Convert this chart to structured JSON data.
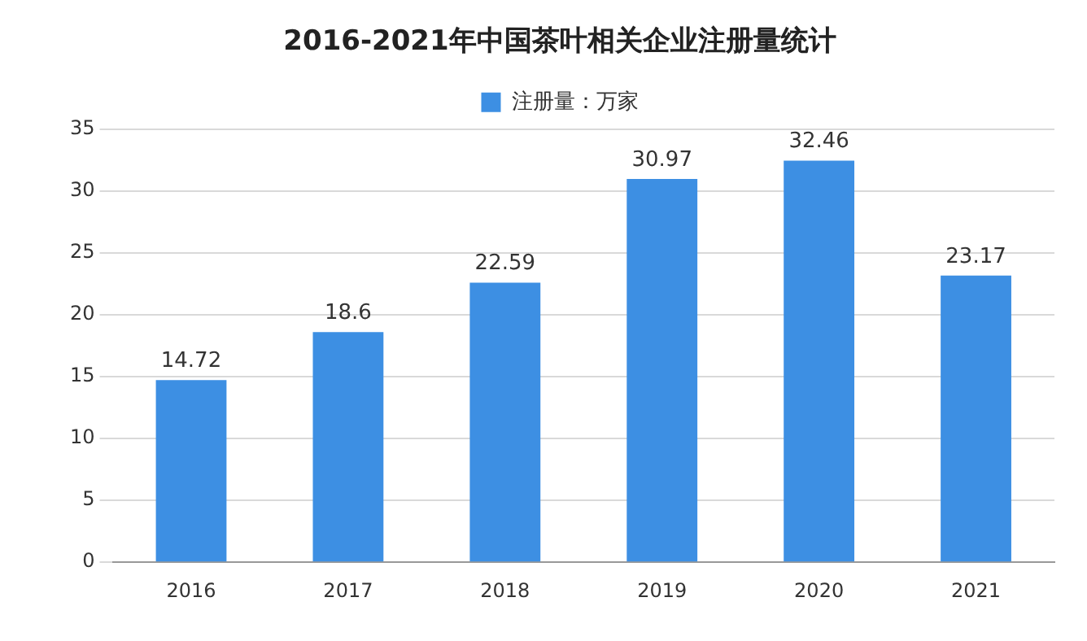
{
  "chart_data": {
    "type": "bar",
    "title": "2016-2021年中国茶叶相关企业注册量统计",
    "categories": [
      "2016",
      "2017",
      "2018",
      "2019",
      "2020",
      "2021"
    ],
    "series": [
      {
        "name": "注册量：万家",
        "color": "#3d8fe3",
        "values": [
          14.72,
          18.6,
          22.59,
          30.97,
          32.46,
          23.17
        ]
      }
    ],
    "ylim": [
      0,
      35
    ],
    "yticks": [
      0,
      5,
      10,
      15,
      20,
      25,
      30,
      35
    ],
    "grid": "y",
    "legend": "top",
    "data_labels": true
  }
}
